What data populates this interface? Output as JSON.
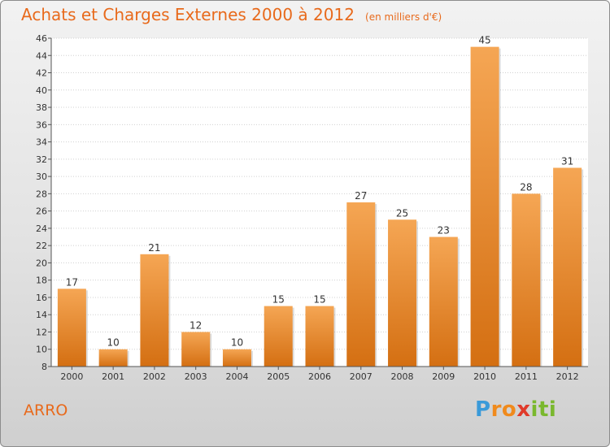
{
  "title": "Achats et Charges Externes 2000 à 2012",
  "unit_label": "(en milliers d'€)",
  "commune": "ARRO",
  "logo": {
    "letters": [
      "P",
      "r",
      "o",
      "x",
      "i",
      "t",
      "i"
    ],
    "colors": [
      "#3a9ad9",
      "#f08a1c",
      "#f08a1c",
      "#e03a2a",
      "#7ab82e",
      "#7ab82e",
      "#7ab82e"
    ]
  },
  "colors": {
    "bar_top": "#f5a654",
    "bar_bottom": "#d46f12",
    "title": "#e86a1c"
  },
  "chart_data": {
    "type": "bar",
    "categories": [
      "2000",
      "2001",
      "2002",
      "2003",
      "2004",
      "2005",
      "2006",
      "2007",
      "2008",
      "2009",
      "2010",
      "2011",
      "2012"
    ],
    "values": [
      17,
      10,
      21,
      12,
      10,
      15,
      15,
      27,
      25,
      23,
      45,
      28,
      31
    ],
    "ylim": [
      8,
      46
    ],
    "yticks": [
      8,
      10,
      12,
      14,
      16,
      18,
      20,
      22,
      24,
      26,
      28,
      30,
      32,
      34,
      36,
      38,
      40,
      42,
      44,
      46
    ],
    "grid": true
  }
}
